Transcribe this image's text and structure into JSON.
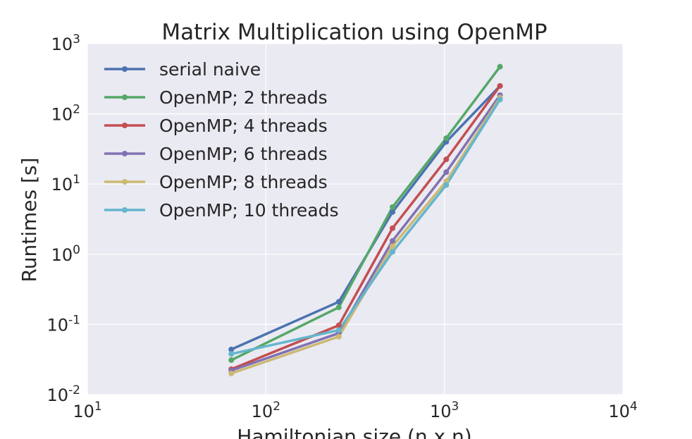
{
  "chart_data": {
    "type": "line",
    "title": "Matrix Multiplication using OpenMP",
    "xlabel": "Hamiltonian size (n x n)",
    "ylabel": "Runtimes [s]",
    "xscale": "log",
    "yscale": "log",
    "xlim": [
      10,
      10000
    ],
    "ylim": [
      0.01,
      1000
    ],
    "grid": true,
    "legend_position": "top-left",
    "x_ticks": [
      {
        "value": 10,
        "base": "10",
        "exp": "1"
      },
      {
        "value": 100,
        "base": "10",
        "exp": "2"
      },
      {
        "value": 1000,
        "base": "10",
        "exp": "3"
      },
      {
        "value": 10000,
        "base": "10",
        "exp": "4"
      }
    ],
    "y_ticks": [
      {
        "value": 0.01,
        "base": "10",
        "exp": "-2"
      },
      {
        "value": 0.1,
        "base": "10",
        "exp": "-1"
      },
      {
        "value": 1,
        "base": "10",
        "exp": "0"
      },
      {
        "value": 10,
        "base": "10",
        "exp": "1"
      },
      {
        "value": 100,
        "base": "10",
        "exp": "2"
      },
      {
        "value": 1000,
        "base": "10",
        "exp": "3"
      }
    ],
    "x": [
      64,
      256,
      512,
      1024,
      2048
    ],
    "series": [
      {
        "name": "serial naive",
        "color": "#4C72B0",
        "values": [
          0.044,
          0.21,
          4.0,
          40,
          250
        ]
      },
      {
        "name": "OpenMP; 2 threads",
        "color": "#55A868",
        "values": [
          0.031,
          0.175,
          4.7,
          45,
          470
        ]
      },
      {
        "name": "OpenMP; 4 threads",
        "color": "#C44E52",
        "values": [
          0.023,
          0.097,
          2.35,
          22.5,
          250
        ]
      },
      {
        "name": "OpenMP; 6 threads",
        "color": "#8172B2",
        "values": [
          0.022,
          0.075,
          1.55,
          14.8,
          185
        ]
      },
      {
        "name": "OpenMP; 8 threads",
        "color": "#CCB974",
        "values": [
          0.02,
          0.067,
          1.3,
          11,
          170
        ]
      },
      {
        "name": "OpenMP; 10 threads",
        "color": "#64B5CD",
        "values": [
          0.038,
          0.083,
          1.08,
          9.7,
          160
        ]
      }
    ]
  }
}
